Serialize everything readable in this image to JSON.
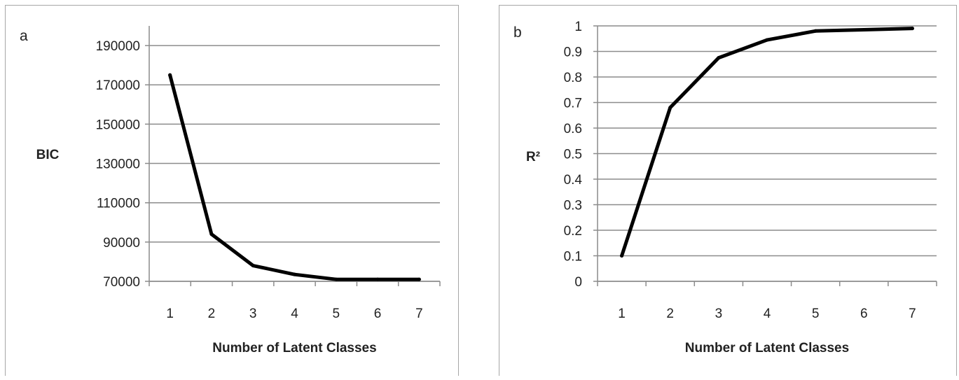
{
  "chart_data": [
    {
      "type": "line",
      "panel_label": "a",
      "title": "",
      "xlabel": "Number of Latent Classes",
      "ylabel": "BIC",
      "categories": [
        "1",
        "2",
        "3",
        "4",
        "5",
        "6",
        "7"
      ],
      "series": [
        {
          "values": [
            175000,
            94000,
            78000,
            73500,
            71000,
            71000,
            71000
          ]
        }
      ],
      "ylim": [
        70000,
        200000
      ],
      "yticks": [
        70000,
        90000,
        110000,
        130000,
        150000,
        170000,
        190000
      ],
      "ytick_labels": [
        "70000",
        "90000",
        "110000",
        "130000",
        "150000",
        "170000",
        "190000"
      ],
      "grid": true,
      "color": "#000000"
    },
    {
      "type": "line",
      "panel_label": "b",
      "title": "",
      "xlabel": "Number of Latent Classes",
      "ylabel": "R²",
      "categories": [
        "1",
        "2",
        "3",
        "4",
        "5",
        "6",
        "7"
      ],
      "series": [
        {
          "values": [
            0.1,
            0.68,
            0.875,
            0.945,
            0.98,
            0.985,
            0.99
          ]
        }
      ],
      "ylim": [
        0,
        1
      ],
      "yticks": [
        0,
        0.1,
        0.2,
        0.3,
        0.4,
        0.5,
        0.6,
        0.7,
        0.8,
        0.9,
        1
      ],
      "ytick_labels": [
        "0",
        "0.1",
        "0.2",
        "0.3",
        "0.4",
        "0.5",
        "0.6",
        "0.7",
        "0.8",
        "0.9",
        "1"
      ],
      "grid": true,
      "color": "#000000"
    }
  ]
}
